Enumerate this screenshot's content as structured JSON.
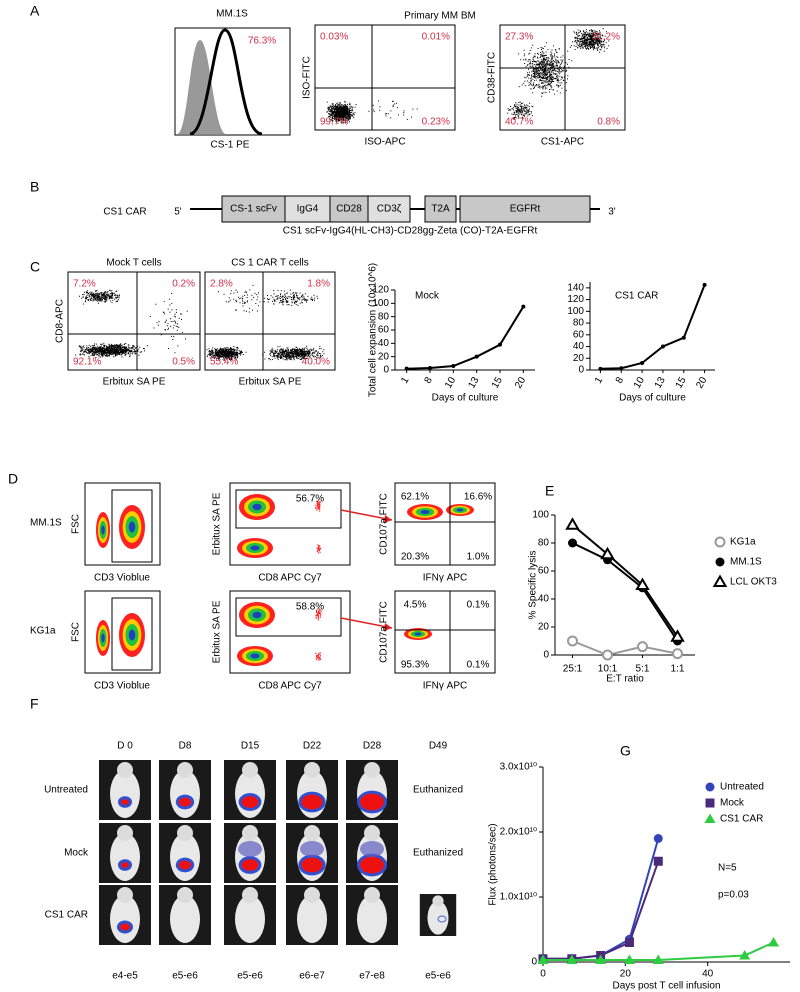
{
  "panel_labels": [
    "A",
    "B",
    "C",
    "D",
    "E",
    "F",
    "G"
  ],
  "panel_a": {
    "histogram": {
      "title": "MM.1S",
      "percent": "76.3%",
      "x_label": "CS-1 PE"
    },
    "group_title": "Primary MM BM"
  },
  "flow_plots": [
    {
      "x_label": "ISO-APC",
      "y_label": "ISO-FITC",
      "quadrants": [
        "0.03%",
        "0.01%",
        "99.7%",
        "0.23%"
      ]
    },
    {
      "x_label": "CS1-APC",
      "y_label": "CD38-FITC",
      "quadrants": [
        "27.3%",
        "31.2%",
        "40.7%",
        "0.8%"
      ]
    },
    {
      "title": "Mock T cells",
      "x_label": "Erbitux SA PE",
      "y_label": "CD8-APC",
      "quadrants": [
        "7.2%",
        "0.2%",
        "92.1%",
        "0.5%"
      ]
    },
    {
      "title": "CS 1 CAR T cells",
      "x_label": "Erbitux SA PE",
      "quadrants": [
        "2.8%",
        "1.8%",
        "55.4%",
        "40.0%"
      ]
    }
  ],
  "panel_b": {
    "construct": "CS1 CAR",
    "five_prime": "5'",
    "three_prime": "3'",
    "segments": [
      "CS-1 scFv",
      "IgG4",
      "CD28",
      "CD3ζ",
      "T2A",
      "EGFRt"
    ],
    "description": "CS1 scFv-IgG4(HL-CH3)-CD28gg-Zeta (CO)-T2A-EGFRt"
  },
  "panel_d": {
    "rows": [
      {
        "name": "MM.1S",
        "gate": "56.7%",
        "quadrants": [
          "62.1%",
          "16.6%",
          "20.3%",
          "1.0%"
        ]
      },
      {
        "name": "KG1a",
        "gate": "58.8%",
        "quadrants": [
          "4.5%",
          "0.1%",
          "95.3%",
          "0.1%"
        ]
      }
    ],
    "axis_labels": {
      "fsc": "FSC",
      "cd3": "CD3 Vioblue",
      "erbitux": "Erbitux SA PE",
      "cd8": "CD8 APC Cy7",
      "cd107a": "CD107a FITC",
      "ifng": "IFNγ APC"
    }
  },
  "panel_f": {
    "days": [
      "D 0",
      "D8",
      "D15",
      "D22",
      "D28",
      "D49"
    ],
    "groups": [
      "Untreated",
      "Mock",
      "CS1 CAR"
    ],
    "euthanized": [
      "Euthanized",
      "Euthanized"
    ],
    "scales": [
      "e4-e5",
      "e5-e6",
      "e5-e6",
      "e6-e7",
      "e7-e8",
      "e5-e6"
    ]
  },
  "chart_data": [
    {
      "type": "line",
      "title": "Mock",
      "y_label": "Total cell expansion (10x10^6)",
      "x_label": "Days of culture",
      "categories": [
        "1",
        "8",
        "10",
        "13",
        "15",
        "20"
      ],
      "values": [
        2,
        3,
        6,
        20,
        38,
        95
      ],
      "color": "#000000",
      "ylim": [
        0,
        120
      ],
      "yticks": [
        0,
        20,
        40,
        60,
        80,
        100,
        120
      ]
    },
    {
      "type": "line",
      "title": "CS1 CAR",
      "x_label": "Days of culture",
      "categories": [
        "1",
        "8",
        "10",
        "13",
        "15",
        "20"
      ],
      "values": [
        2,
        3,
        12,
        40,
        55,
        145
      ],
      "color": "#000000",
      "ylim": [
        0,
        150
      ],
      "yticks": [
        0,
        20,
        40,
        60,
        80,
        100,
        120,
        140
      ]
    },
    {
      "type": "line",
      "y_label": "% Specific lysis",
      "x_label": "E:T ratio",
      "categories": [
        "25:1",
        "10:1",
        "5:1",
        "1:1"
      ],
      "series": [
        {
          "name": "KG1a",
          "color": "#999999",
          "marker": "open-circle",
          "values": [
            10,
            0,
            6,
            1
          ]
        },
        {
          "name": "MM.1S",
          "color": "#000000",
          "marker": "circle",
          "values": [
            80,
            68,
            48,
            10
          ]
        },
        {
          "name": "LCL OKT3",
          "color": "#000000",
          "marker": "open-triangle",
          "values": [
            93,
            72,
            50,
            13
          ]
        }
      ],
      "ylim": [
        0,
        100
      ],
      "yticks": [
        0,
        20,
        40,
        60,
        80,
        100
      ]
    },
    {
      "type": "line",
      "y_label": "Flux (photons/sec)",
      "x_label": "Days post T cell infusion",
      "x": [
        0,
        7,
        14,
        21,
        28,
        49,
        56
      ],
      "series": [
        {
          "name": "Untreated",
          "color": "#3344bb",
          "marker": "circle",
          "values": [
            500000000,
            500000000,
            1000000000,
            3500000000,
            19000000000,
            null,
            null
          ]
        },
        {
          "name": "Mock",
          "color": "#4b2a7a",
          "marker": "square",
          "values": [
            500000000,
            500000000,
            1000000000,
            3000000000,
            15500000000,
            null,
            null
          ]
        },
        {
          "name": "CS1 CAR",
          "color": "#2ecc40",
          "marker": "triangle",
          "values": [
            300000000,
            300000000,
            300000000,
            300000000,
            300000000,
            1000000000,
            3000000000
          ]
        }
      ],
      "annotations": [
        "N=5",
        "p=0.03"
      ],
      "xlim": [
        0,
        60
      ],
      "xticks": [
        0,
        20,
        40
      ],
      "ylim": [
        0,
        30000000000
      ],
      "yticks": [
        0,
        {
          "value": 10000000000,
          "label": "1.0x10¹⁰"
        },
        {
          "value": 20000000000,
          "label": "2.0x10¹⁰"
        },
        {
          "value": 30000000000,
          "label": "3.0x10¹⁰"
        }
      ]
    }
  ]
}
